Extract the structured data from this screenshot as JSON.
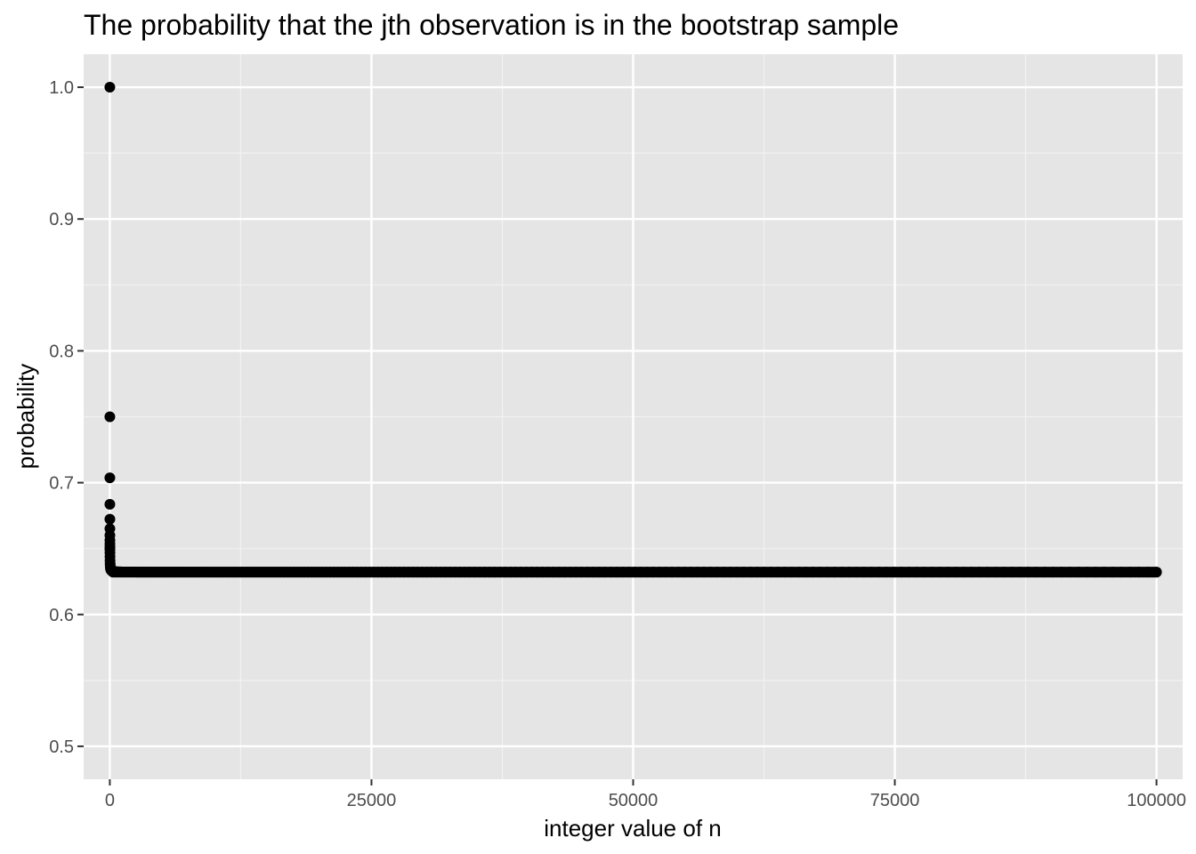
{
  "chart_data": {
    "type": "scatter",
    "title": "The probability that the jth observation is in the bootstrap sample",
    "xlabel": "integer value of n",
    "ylabel": "probability",
    "xlim": [
      -2500,
      102500
    ],
    "ylim": [
      0.475,
      1.025
    ],
    "x_ticks": [
      0,
      25000,
      50000,
      75000,
      100000
    ],
    "x_tick_labels": [
      "0",
      "25000",
      "50000",
      "75000",
      "100000"
    ],
    "x_minor_ticks": [
      12500,
      37500,
      62500,
      87500
    ],
    "y_ticks": [
      0.5,
      0.6,
      0.7,
      0.8,
      0.9,
      1.0
    ],
    "y_tick_labels": [
      "0.5",
      "0.6",
      "0.7",
      "0.8",
      "0.9",
      "1.0"
    ],
    "y_minor_ticks": [
      0.55,
      0.65,
      0.75,
      0.85,
      0.95
    ],
    "grid": true,
    "legend": "none",
    "series": [
      {
        "formula": "1 - (1 - 1/n)^n",
        "x_range": [
          1,
          100000
        ],
        "points": [
          {
            "x": 1,
            "y": 1.0
          },
          {
            "x": 2,
            "y": 0.75
          },
          {
            "x": 3,
            "y": 0.7037
          },
          {
            "x": 4,
            "y": 0.6836
          },
          {
            "x": 5,
            "y": 0.6723
          },
          {
            "x": 6,
            "y": 0.6651
          },
          {
            "x": 7,
            "y": 0.6601
          },
          {
            "x": 8,
            "y": 0.6564
          },
          {
            "x": 9,
            "y": 0.6536
          },
          {
            "x": 10,
            "y": 0.6513
          },
          {
            "x": 100000,
            "y": 0.6321
          }
        ]
      }
    ],
    "colors": {
      "panel_background": "#e5e5e5",
      "grid_major": "#ffffff",
      "grid_minor": "#f2f2f2",
      "points": "#000000",
      "tick_label": "#4d4d4d",
      "tick_mark": "#333333"
    }
  }
}
